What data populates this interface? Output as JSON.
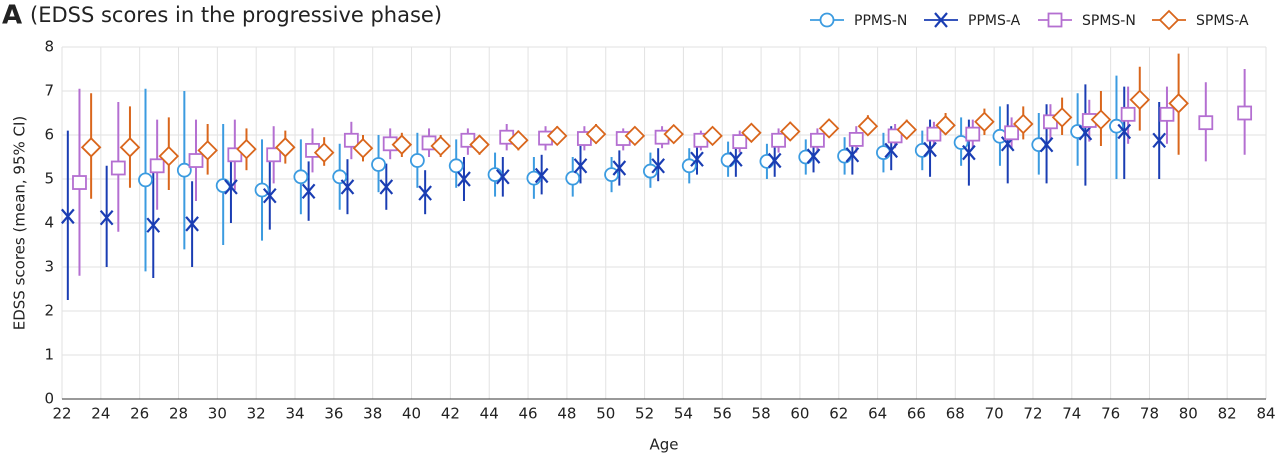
{
  "chart_data": {
    "type": "errorbar-scatter",
    "panel_label": "A",
    "title": "(EDSS scores in the progressive phase)",
    "x_label": "Age",
    "y_label": "EDSS scores (mean, 95% CI)",
    "xlim": [
      22,
      84
    ],
    "xticks": [
      22,
      24,
      26,
      28,
      30,
      32,
      34,
      36,
      38,
      40,
      42,
      44,
      46,
      48,
      50,
      52,
      54,
      56,
      58,
      60,
      62,
      64,
      66,
      68,
      70,
      72,
      74,
      76,
      78,
      80,
      82,
      84
    ],
    "ylim": [
      0,
      8
    ],
    "yticks": [
      0,
      1,
      2,
      3,
      4,
      5,
      6,
      7,
      8
    ],
    "grid": true,
    "legend": "top-right",
    "series": [
      {
        "name": "PPMS-N",
        "color": "#3b9be0",
        "marker": "circle",
        "x": [
          26.3,
          28.3,
          30.3,
          32.3,
          34.3,
          36.3,
          38.3,
          40.3,
          42.3,
          44.3,
          46.3,
          48.3,
          50.3,
          52.3,
          54.3,
          56.3,
          58.3,
          60.3,
          62.3,
          64.3,
          66.3,
          68.3,
          70.3,
          72.3,
          74.3,
          76.3
        ],
        "values": [
          4.98,
          5.2,
          4.85,
          4.75,
          5.05,
          5.05,
          5.33,
          5.42,
          5.3,
          5.1,
          5.02,
          5.02,
          5.1,
          5.18,
          5.3,
          5.43,
          5.4,
          5.5,
          5.52,
          5.6,
          5.65,
          5.83,
          5.97,
          5.78,
          6.08,
          6.2
        ],
        "ci_low": [
          2.9,
          3.4,
          3.5,
          3.6,
          4.2,
          4.3,
          4.7,
          4.8,
          4.8,
          4.6,
          4.55,
          4.6,
          4.7,
          4.8,
          4.9,
          5.05,
          5.0,
          5.1,
          5.1,
          5.15,
          5.2,
          5.3,
          5.3,
          5.1,
          5.3,
          5.0
        ],
        "ci_high": [
          7.05,
          7.0,
          6.25,
          5.9,
          5.9,
          5.8,
          6.0,
          6.05,
          5.9,
          5.6,
          5.5,
          5.5,
          5.5,
          5.6,
          5.7,
          5.85,
          5.8,
          5.9,
          5.95,
          6.05,
          6.1,
          6.4,
          6.65,
          6.5,
          6.95,
          7.35
        ]
      },
      {
        "name": "PPMS-A",
        "color": "#1a3db3",
        "marker": "x",
        "x": [
          22.3,
          24.3,
          26.7,
          28.7,
          30.7,
          32.7,
          34.7,
          36.7,
          38.7,
          40.7,
          42.7,
          44.7,
          46.7,
          48.7,
          50.7,
          52.7,
          54.7,
          56.7,
          58.7,
          60.7,
          62.7,
          64.7,
          66.7,
          68.7,
          70.7,
          72.7,
          74.7,
          76.7,
          78.5
        ],
        "values": [
          4.15,
          4.12,
          3.95,
          3.98,
          4.82,
          4.62,
          4.72,
          4.82,
          4.82,
          4.68,
          5.0,
          5.05,
          5.08,
          5.3,
          5.25,
          5.3,
          5.45,
          5.45,
          5.42,
          5.52,
          5.55,
          5.65,
          5.67,
          5.6,
          5.8,
          5.78,
          6.05,
          6.08,
          5.88
        ],
        "ci_low": [
          2.25,
          3.0,
          2.75,
          3.0,
          4.0,
          3.85,
          4.05,
          4.2,
          4.3,
          4.2,
          4.5,
          4.6,
          4.65,
          4.9,
          4.85,
          4.95,
          5.1,
          5.05,
          5.05,
          5.15,
          5.1,
          5.2,
          5.05,
          4.85,
          4.9,
          4.9,
          4.85,
          5.0,
          5.0
        ],
        "ci_high": [
          6.1,
          5.3,
          5.2,
          4.95,
          5.65,
          5.5,
          5.4,
          5.45,
          5.35,
          5.2,
          5.5,
          5.5,
          5.55,
          5.75,
          5.65,
          5.7,
          5.85,
          5.85,
          5.8,
          5.95,
          6.0,
          6.2,
          6.35,
          6.35,
          6.7,
          6.7,
          7.15,
          7.1,
          6.75
        ]
      },
      {
        "name": "SPMS-N",
        "color": "#b46fd1",
        "marker": "square",
        "x": [
          22.9,
          24.9,
          26.9,
          28.9,
          30.9,
          32.9,
          34.9,
          36.9,
          38.9,
          40.9,
          42.9,
          44.9,
          46.9,
          48.9,
          50.9,
          52.9,
          54.9,
          56.9,
          58.9,
          60.9,
          62.9,
          64.9,
          66.9,
          68.9,
          70.9,
          72.9,
          74.9,
          76.9,
          78.9,
          80.9,
          82.9
        ],
        "values": [
          4.92,
          5.25,
          5.3,
          5.42,
          5.55,
          5.55,
          5.65,
          5.88,
          5.8,
          5.82,
          5.88,
          5.95,
          5.93,
          5.92,
          5.92,
          5.95,
          5.88,
          5.85,
          5.88,
          5.88,
          5.9,
          5.98,
          6.02,
          6.02,
          6.05,
          6.3,
          6.33,
          6.47,
          6.47,
          6.28,
          6.5
        ],
        "ci_low": [
          2.8,
          3.8,
          4.3,
          4.5,
          4.75,
          4.9,
          5.15,
          5.45,
          5.45,
          5.5,
          5.55,
          5.65,
          5.65,
          5.65,
          5.65,
          5.7,
          5.65,
          5.6,
          5.6,
          5.6,
          5.6,
          5.7,
          5.75,
          5.7,
          5.7,
          5.9,
          5.85,
          5.8,
          5.8,
          5.4,
          5.55
        ],
        "ci_high": [
          7.05,
          6.75,
          6.35,
          6.35,
          6.35,
          6.2,
          6.15,
          6.3,
          6.15,
          6.15,
          6.15,
          6.25,
          6.2,
          6.2,
          6.15,
          6.2,
          6.1,
          6.1,
          6.15,
          6.15,
          6.2,
          6.25,
          6.3,
          6.35,
          6.4,
          6.7,
          6.8,
          7.1,
          7.1,
          7.2,
          7.5
        ]
      },
      {
        "name": "SPMS-A",
        "color": "#d9661c",
        "marker": "diamond",
        "x": [
          23.5,
          25.5,
          27.5,
          29.5,
          31.5,
          33.5,
          35.5,
          37.5,
          39.5,
          41.5,
          43.5,
          45.5,
          47.5,
          49.5,
          51.5,
          53.5,
          55.5,
          57.5,
          59.5,
          61.5,
          63.5,
          65.5,
          67.5,
          69.5,
          71.5,
          73.5,
          75.5,
          77.5,
          79.5
        ],
        "values": [
          5.72,
          5.72,
          5.52,
          5.65,
          5.68,
          5.72,
          5.6,
          5.7,
          5.78,
          5.75,
          5.78,
          5.88,
          5.98,
          6.02,
          5.98,
          6.02,
          5.98,
          6.05,
          6.08,
          6.15,
          6.2,
          6.12,
          6.22,
          6.3,
          6.25,
          6.4,
          6.35,
          6.8,
          6.72
        ],
        "ci_low": [
          4.55,
          4.8,
          4.75,
          5.1,
          5.2,
          5.35,
          5.3,
          5.4,
          5.5,
          5.5,
          5.55,
          5.65,
          5.8,
          5.8,
          5.8,
          5.85,
          5.8,
          5.85,
          5.9,
          5.95,
          6.0,
          5.9,
          6.0,
          6.0,
          5.9,
          6.0,
          5.75,
          6.1,
          5.55
        ],
        "ci_high": [
          6.95,
          6.65,
          6.4,
          6.25,
          6.15,
          6.1,
          5.95,
          6.0,
          6.05,
          6.0,
          6.0,
          6.1,
          6.2,
          6.25,
          6.15,
          6.2,
          6.15,
          6.25,
          6.3,
          6.35,
          6.45,
          6.35,
          6.5,
          6.6,
          6.65,
          6.85,
          7.0,
          7.55,
          7.85
        ]
      }
    ]
  }
}
